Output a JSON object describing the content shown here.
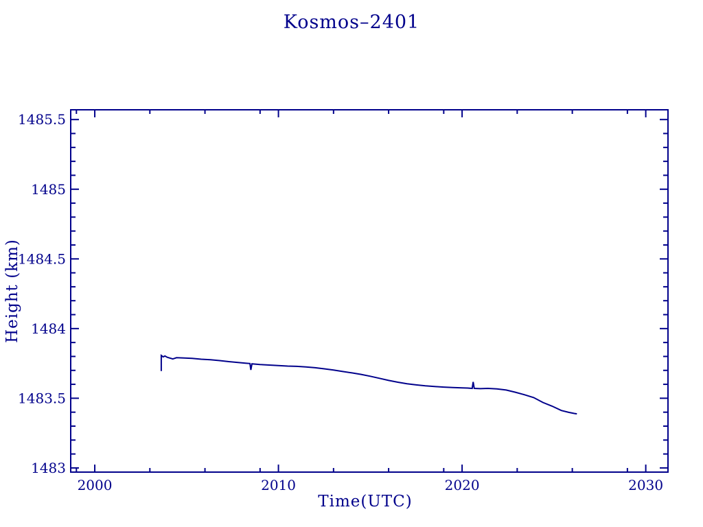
{
  "window": {
    "background": "#FFFFFF"
  },
  "colors": {
    "accent": "#00008B",
    "line": "#00008B",
    "background": "#FFFFFF"
  },
  "chart_data": {
    "type": "line",
    "title": "Kosmos–2401",
    "xlabel": "Time(UTC)",
    "ylabel": "Height (km)",
    "xlim": [
      1998.69,
      2031.21
    ],
    "ylim": [
      1482.97,
      1485.57
    ],
    "grid": false,
    "legend": null,
    "line_color": "#00008B",
    "x_major_ticks": [
      2000,
      2010,
      2020,
      2030
    ],
    "x_tick_labels": [
      "2000",
      "2010",
      "2020",
      "2030"
    ],
    "x_minor_ticks": [
      1999,
      2003,
      2006,
      2009,
      2013,
      2016,
      2019,
      2023,
      2026,
      2029
    ],
    "y_major_ticks": [
      1483,
      1483.5,
      1484,
      1484.5,
      1485,
      1485.5
    ],
    "y_tick_labels": [
      "1483",
      "1483.5",
      "1484",
      "1484.5",
      "1485",
      "1485.5"
    ],
    "y_minor_step": 0.1,
    "series": [
      {
        "name": "Kosmos-2401 height",
        "points": [
          [
            2003.62,
            1483.695
          ],
          [
            2003.62,
            1483.807
          ],
          [
            2003.72,
            1483.797
          ],
          [
            2003.82,
            1483.803
          ],
          [
            2003.95,
            1483.794
          ],
          [
            2004.25,
            1483.782
          ],
          [
            2004.45,
            1483.791
          ],
          [
            2004.9,
            1483.789
          ],
          [
            2005.3,
            1483.786
          ],
          [
            2005.8,
            1483.78
          ],
          [
            2006.3,
            1483.776
          ],
          [
            2006.8,
            1483.77
          ],
          [
            2007.3,
            1483.763
          ],
          [
            2007.8,
            1483.757
          ],
          [
            2008.2,
            1483.752
          ],
          [
            2008.45,
            1483.749
          ],
          [
            2008.5,
            1483.703
          ],
          [
            2008.56,
            1483.747
          ],
          [
            2009.0,
            1483.742
          ],
          [
            2009.5,
            1483.738
          ],
          [
            2010.0,
            1483.734
          ],
          [
            2010.5,
            1483.731
          ],
          [
            2011.0,
            1483.729
          ],
          [
            2011.5,
            1483.725
          ],
          [
            2012.0,
            1483.719
          ],
          [
            2012.5,
            1483.711
          ],
          [
            2013.0,
            1483.702
          ],
          [
            2013.5,
            1483.692
          ],
          [
            2014.0,
            1483.682
          ],
          [
            2014.5,
            1483.671
          ],
          [
            2015.0,
            1483.658
          ],
          [
            2015.5,
            1483.643
          ],
          [
            2016.0,
            1483.628
          ],
          [
            2016.5,
            1483.615
          ],
          [
            2017.0,
            1483.604
          ],
          [
            2017.5,
            1483.596
          ],
          [
            2018.0,
            1483.589
          ],
          [
            2018.5,
            1483.584
          ],
          [
            2019.0,
            1483.58
          ],
          [
            2019.5,
            1483.577
          ],
          [
            2020.0,
            1483.574
          ],
          [
            2020.3,
            1483.573
          ],
          [
            2020.55,
            1483.571
          ],
          [
            2020.6,
            1483.617
          ],
          [
            2020.66,
            1483.571
          ],
          [
            2021.0,
            1483.569
          ],
          [
            2021.4,
            1483.571
          ],
          [
            2021.9,
            1483.567
          ],
          [
            2022.4,
            1483.559
          ],
          [
            2022.9,
            1483.543
          ],
          [
            2023.4,
            1483.525
          ],
          [
            2023.9,
            1483.505
          ],
          [
            2024.4,
            1483.47
          ],
          [
            2024.9,
            1483.443
          ],
          [
            2025.4,
            1483.412
          ],
          [
            2025.8,
            1483.399
          ],
          [
            2026.1,
            1483.391
          ],
          [
            2026.25,
            1483.388
          ]
        ]
      }
    ]
  }
}
